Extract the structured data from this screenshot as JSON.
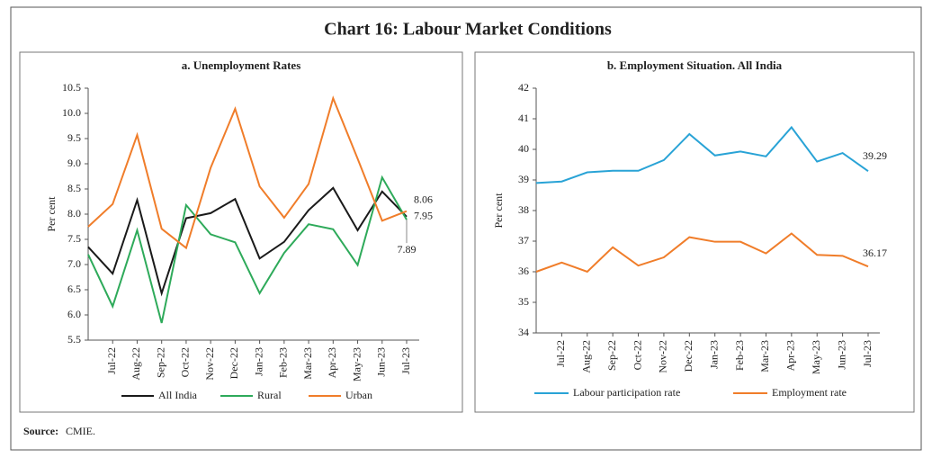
{
  "title": "Chart 16: Labour Market Conditions",
  "source_label": "Source:",
  "source": "CMIE.",
  "chart_data": [
    {
      "type": "line",
      "title": "a. Unemployment Rates",
      "ylabel": "Per cent",
      "categories": [
        null,
        "Jul-22",
        "Aug-22",
        "Sep-22",
        "Oct-22",
        "Nov-22",
        "Dec-22",
        "Jan-23",
        "Feb-23",
        "Mar-23",
        "Apr-23",
        "May-23",
        "Jun-23",
        "Jul-23"
      ],
      "series": [
        {
          "name": "All India",
          "color": "#1a1a1a",
          "values": [
            7.35,
            6.82,
            8.28,
            6.43,
            7.92,
            8.02,
            8.3,
            7.12,
            7.45,
            8.08,
            8.52,
            7.68,
            8.45,
            7.95
          ]
        },
        {
          "name": "Rural",
          "color": "#2eaa5a",
          "values": [
            7.2,
            6.17,
            7.68,
            5.84,
            8.18,
            7.6,
            7.44,
            6.43,
            7.23,
            7.8,
            7.7,
            6.99,
            8.73,
            7.89
          ]
        },
        {
          "name": "Urban",
          "color": "#f07d2a",
          "values": [
            7.75,
            8.2,
            9.57,
            7.71,
            7.33,
            8.92,
            10.09,
            8.55,
            7.93,
            8.6,
            10.3,
            9.1,
            7.87,
            8.06
          ]
        }
      ],
      "ylim": [
        5.5,
        10.5
      ],
      "yticks": [
        5.5,
        {
          "value": 6,
          "label": "6.0"
        },
        6.5,
        {
          "value": 7,
          "label": "7.0"
        },
        7.5,
        {
          "value": 8,
          "label": "8.0"
        },
        8.5,
        {
          "value": 9,
          "label": "9.0"
        },
        9.5,
        {
          "value": 10,
          "label": "10.0"
        },
        10.5
      ]
    },
    {
      "type": "line",
      "title": "b. Employment Situation. All India",
      "ylabel": "Per cent",
      "categories": [
        null,
        "Jul-22",
        "Aug-22",
        "Sep-22",
        "Oct-22",
        "Nov-22",
        "Dec-22",
        "Jan-23",
        "Feb-23",
        "Mar-23",
        "Apr-23",
        "May-23",
        "Jun-23",
        "Jul-23"
      ],
      "series": [
        {
          "name": "Labour participation rate",
          "color": "#29a3d6",
          "values": [
            38.9,
            38.95,
            39.25,
            39.3,
            39.3,
            39.65,
            40.5,
            39.8,
            39.93,
            39.77,
            40.72,
            39.6,
            39.88,
            39.29
          ]
        },
        {
          "name": "Employment rate",
          "color": "#f07d2a",
          "values": [
            36.0,
            36.3,
            36.0,
            36.8,
            36.2,
            36.47,
            37.13,
            36.98,
            36.98,
            36.6,
            37.25,
            36.55,
            36.52,
            36.17
          ]
        }
      ],
      "ylim": [
        34,
        42
      ],
      "yticks": [
        34,
        35,
        36,
        37,
        38,
        39,
        40,
        41,
        42
      ]
    }
  ]
}
